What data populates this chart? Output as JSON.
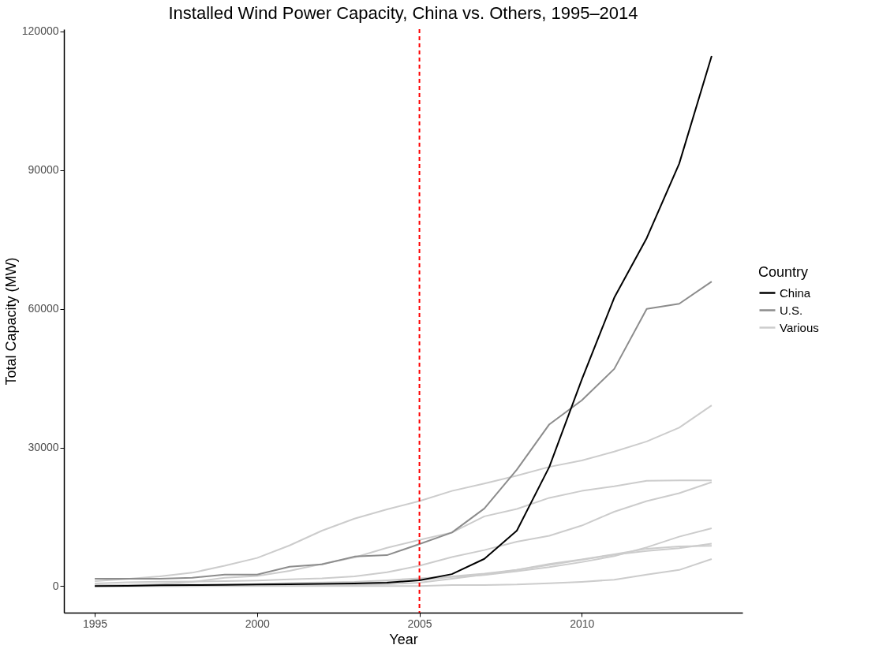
{
  "chart_data": {
    "type": "line",
    "title": "Installed Wind Power Capacity, China vs. Others, 1995–2014",
    "xlabel": "Year",
    "ylabel": "Total Capacity (MW)",
    "legend_title": "Country",
    "legend": "right",
    "grid": false,
    "marker": "none",
    "line_style": "solid",
    "x": [
      1995,
      1996,
      1997,
      1998,
      1999,
      2000,
      2001,
      2002,
      2003,
      2004,
      2005,
      2006,
      2007,
      2008,
      2009,
      2010,
      2011,
      2012,
      2013,
      2014
    ],
    "xlim": [
      1994.05,
      2014.95
    ],
    "xticks": [
      1995,
      2000,
      2005,
      2010
    ],
    "ylim": [
      -5738,
      120501
    ],
    "yticks": [
      0,
      30000,
      60000,
      90000,
      120000
    ],
    "series": [
      {
        "name": "China",
        "color": "#000000",
        "values": [
          40,
          80,
          170,
          220,
          270,
          350,
          400,
          470,
          570,
          760,
          1260,
          2600,
          5900,
          12000,
          25800,
          44700,
          62400,
          75300,
          91400,
          114700
        ]
      },
      {
        "name": "U.S.",
        "color": "#8c8c8c",
        "values": [
          1600,
          1600,
          1600,
          1800,
          2500,
          2500,
          4200,
          4700,
          6400,
          6700,
          9100,
          11600,
          16800,
          25200,
          35000,
          40200,
          47000,
          60000,
          61100,
          65900
        ]
      },
      {
        "name": "Various",
        "color": "#cccccc",
        "values": [
          1100,
          1550,
          2100,
          2900,
          4400,
          6100,
          8800,
          12000,
          14600,
          16600,
          18400,
          20600,
          22200,
          23900,
          25800,
          27200,
          29100,
          31300,
          34300,
          39100
        ]
      },
      {
        "color": "#cccccc",
        "values": [
          100,
          250,
          500,
          900,
          1800,
          2200,
          3300,
          4800,
          6200,
          8300,
          10000,
          11600,
          15100,
          16700,
          19100,
          20600,
          21600,
          22800,
          22900,
          22900
        ]
      },
      {
        "color": "#cccccc",
        "values": [
          580,
          820,
          940,
          990,
          1080,
          1220,
          1460,
          1700,
          2100,
          3000,
          4400,
          6300,
          7800,
          9600,
          10900,
          13100,
          16100,
          18400,
          20100,
          22500
        ]
      },
      {
        "color": "#cccccc",
        "values": [
          200,
          270,
          330,
          330,
          360,
          410,
          470,
          550,
          650,
          890,
          1350,
          1960,
          2400,
          3200,
          4100,
          5200,
          6500,
          8400,
          10700,
          12500
        ]
      },
      {
        "color": "#cccccc",
        "values": [
          10,
          20,
          30,
          40,
          50,
          60,
          90,
          150,
          250,
          390,
          760,
          1600,
          2500,
          3500,
          4600,
          5700,
          6800,
          7600,
          8200,
          9200
        ]
      },
      {
        "color": "#cccccc",
        "values": [
          20,
          70,
          100,
          180,
          280,
          430,
          700,
          800,
          900,
          1260,
          1700,
          2100,
          2700,
          3500,
          4800,
          5800,
          6900,
          8100,
          8600,
          8700
        ]
      },
      {
        "color": "#cccccc",
        "values": [
          20,
          20,
          20,
          20,
          20,
          20,
          20,
          20,
          20,
          30,
          30,
          240,
          250,
          340,
          600,
          930,
          1400,
          2500,
          3500,
          5850
        ]
      }
    ],
    "ref_lines": [
      {
        "axis": "x",
        "value": 2005,
        "color": "#ff0000",
        "line_style": "dashed"
      }
    ]
  }
}
